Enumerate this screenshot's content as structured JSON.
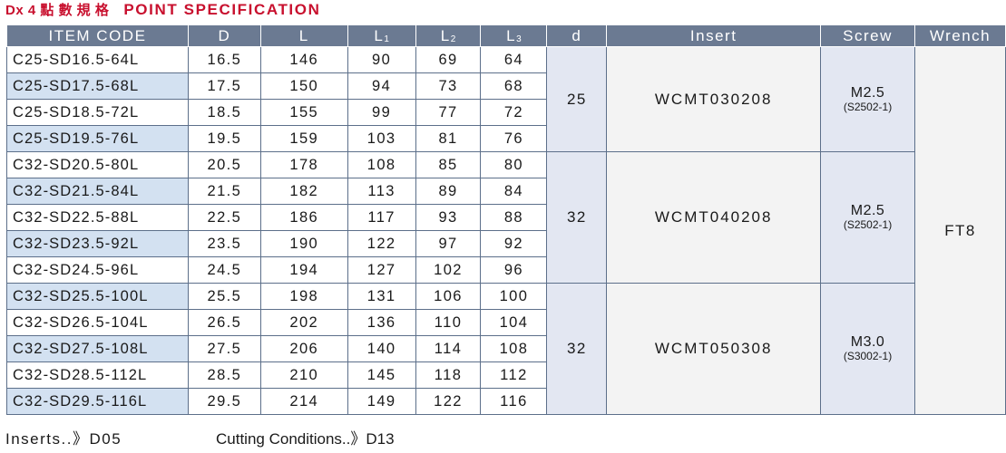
{
  "title": {
    "prefix": "Dx 4 點 數 規 格",
    "main": "POINT SPECIFICATION"
  },
  "columns": {
    "item_code": "ITEM CODE",
    "D": "D",
    "L": "L",
    "L1": {
      "base": "L",
      "sub": "1"
    },
    "L2": {
      "base": "L",
      "sub": "2"
    },
    "L3": {
      "base": "L",
      "sub": "3"
    },
    "d": "d",
    "insert": "Insert",
    "screw": "Screw",
    "wrench": "Wrench"
  },
  "rows": [
    {
      "code": "C25-SD16.5-64L",
      "D": "16.5",
      "L": "146",
      "L1": "90",
      "L2": "69",
      "L3": "64"
    },
    {
      "code": "C25-SD17.5-68L",
      "D": "17.5",
      "L": "150",
      "L1": "94",
      "L2": "73",
      "L3": "68"
    },
    {
      "code": "C25-SD18.5-72L",
      "D": "18.5",
      "L": "155",
      "L1": "99",
      "L2": "77",
      "L3": "72"
    },
    {
      "code": "C25-SD19.5-76L",
      "D": "19.5",
      "L": "159",
      "L1": "103",
      "L2": "81",
      "L3": "76"
    },
    {
      "code": "C32-SD20.5-80L",
      "D": "20.5",
      "L": "178",
      "L1": "108",
      "L2": "85",
      "L3": "80"
    },
    {
      "code": "C32-SD21.5-84L",
      "D": "21.5",
      "L": "182",
      "L1": "113",
      "L2": "89",
      "L3": "84"
    },
    {
      "code": "C32-SD22.5-88L",
      "D": "22.5",
      "L": "186",
      "L1": "117",
      "L2": "93",
      "L3": "88"
    },
    {
      "code": "C32-SD23.5-92L",
      "D": "23.5",
      "L": "190",
      "L1": "122",
      "L2": "97",
      "L3": "92"
    },
    {
      "code": "C32-SD24.5-96L",
      "D": "24.5",
      "L": "194",
      "L1": "127",
      "L2": "102",
      "L3": "96"
    },
    {
      "code": "C32-SD25.5-100L",
      "D": "25.5",
      "L": "198",
      "L1": "131",
      "L2": "106",
      "L3": "100"
    },
    {
      "code": "C32-SD26.5-104L",
      "D": "26.5",
      "L": "202",
      "L1": "136",
      "L2": "110",
      "L3": "104"
    },
    {
      "code": "C32-SD27.5-108L",
      "D": "27.5",
      "L": "206",
      "L1": "140",
      "L2": "114",
      "L3": "108"
    },
    {
      "code": "C32-SD28.5-112L",
      "D": "28.5",
      "L": "210",
      "L1": "145",
      "L2": "118",
      "L3": "112"
    },
    {
      "code": "C32-SD29.5-116L",
      "D": "29.5",
      "L": "214",
      "L1": "149",
      "L2": "122",
      "L3": "116"
    }
  ],
  "groups": [
    {
      "d": "25",
      "insert": "WCMT030208",
      "screw": "M2.5",
      "screw_code": "(S2502-1)"
    },
    {
      "d": "32",
      "insert": "WCMT040208",
      "screw": "M2.5",
      "screw_code": "(S2502-1)"
    },
    {
      "d": "32",
      "insert": "WCMT050308",
      "screw": "M3.0",
      "screw_code": "(S3002-1)"
    }
  ],
  "wrench": "FT8",
  "footer": {
    "inserts_text": "Inserts..》D05",
    "cutting_text": "Cutting Conditions..》D13"
  },
  "colors": {
    "title_red": "#c8102e",
    "header_bg": "#6b7a92",
    "alt_row_bg": "#d3e1f1",
    "group_bg": "#e3e7f2",
    "insert_bg": "#f3f3f3",
    "border": "#5c6f8a"
  }
}
